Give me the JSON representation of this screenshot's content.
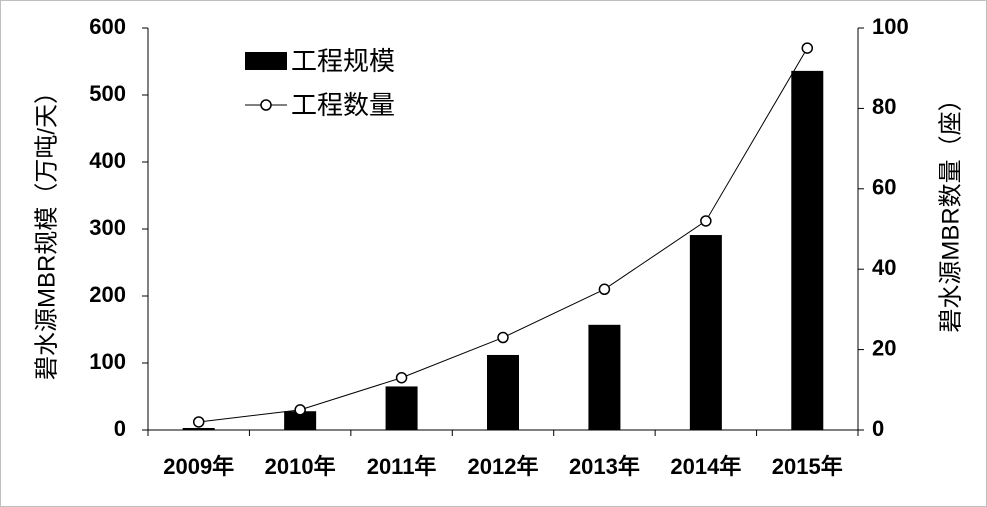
{
  "chart_data": {
    "type": "bar",
    "categories": [
      "2009年",
      "2010年",
      "2011年",
      "2012年",
      "2013年",
      "2014年",
      "2015年"
    ],
    "series": [
      {
        "name": "工程规模",
        "type": "bar",
        "axis": "left",
        "values": [
          3,
          28,
          65,
          112,
          157,
          291,
          536
        ],
        "color": "#000000"
      },
      {
        "name": "工程数量",
        "type": "line",
        "axis": "right",
        "marker": "open-circle",
        "values": [
          2,
          5,
          13,
          23,
          35,
          52,
          95
        ],
        "color": "#000000"
      }
    ],
    "ylabel": "碧水源MBR规模（万吨/天）",
    "y2label": "碧水源MBR数量（座）",
    "ylim": [
      0,
      600
    ],
    "y2lim": [
      0,
      100
    ],
    "yticks": [
      "0",
      "100",
      "200",
      "300",
      "400",
      "500",
      "600"
    ],
    "y2ticks": [
      "0",
      "20",
      "40",
      "60",
      "80",
      "100"
    ],
    "grid": false,
    "legend_position": "top-left"
  }
}
